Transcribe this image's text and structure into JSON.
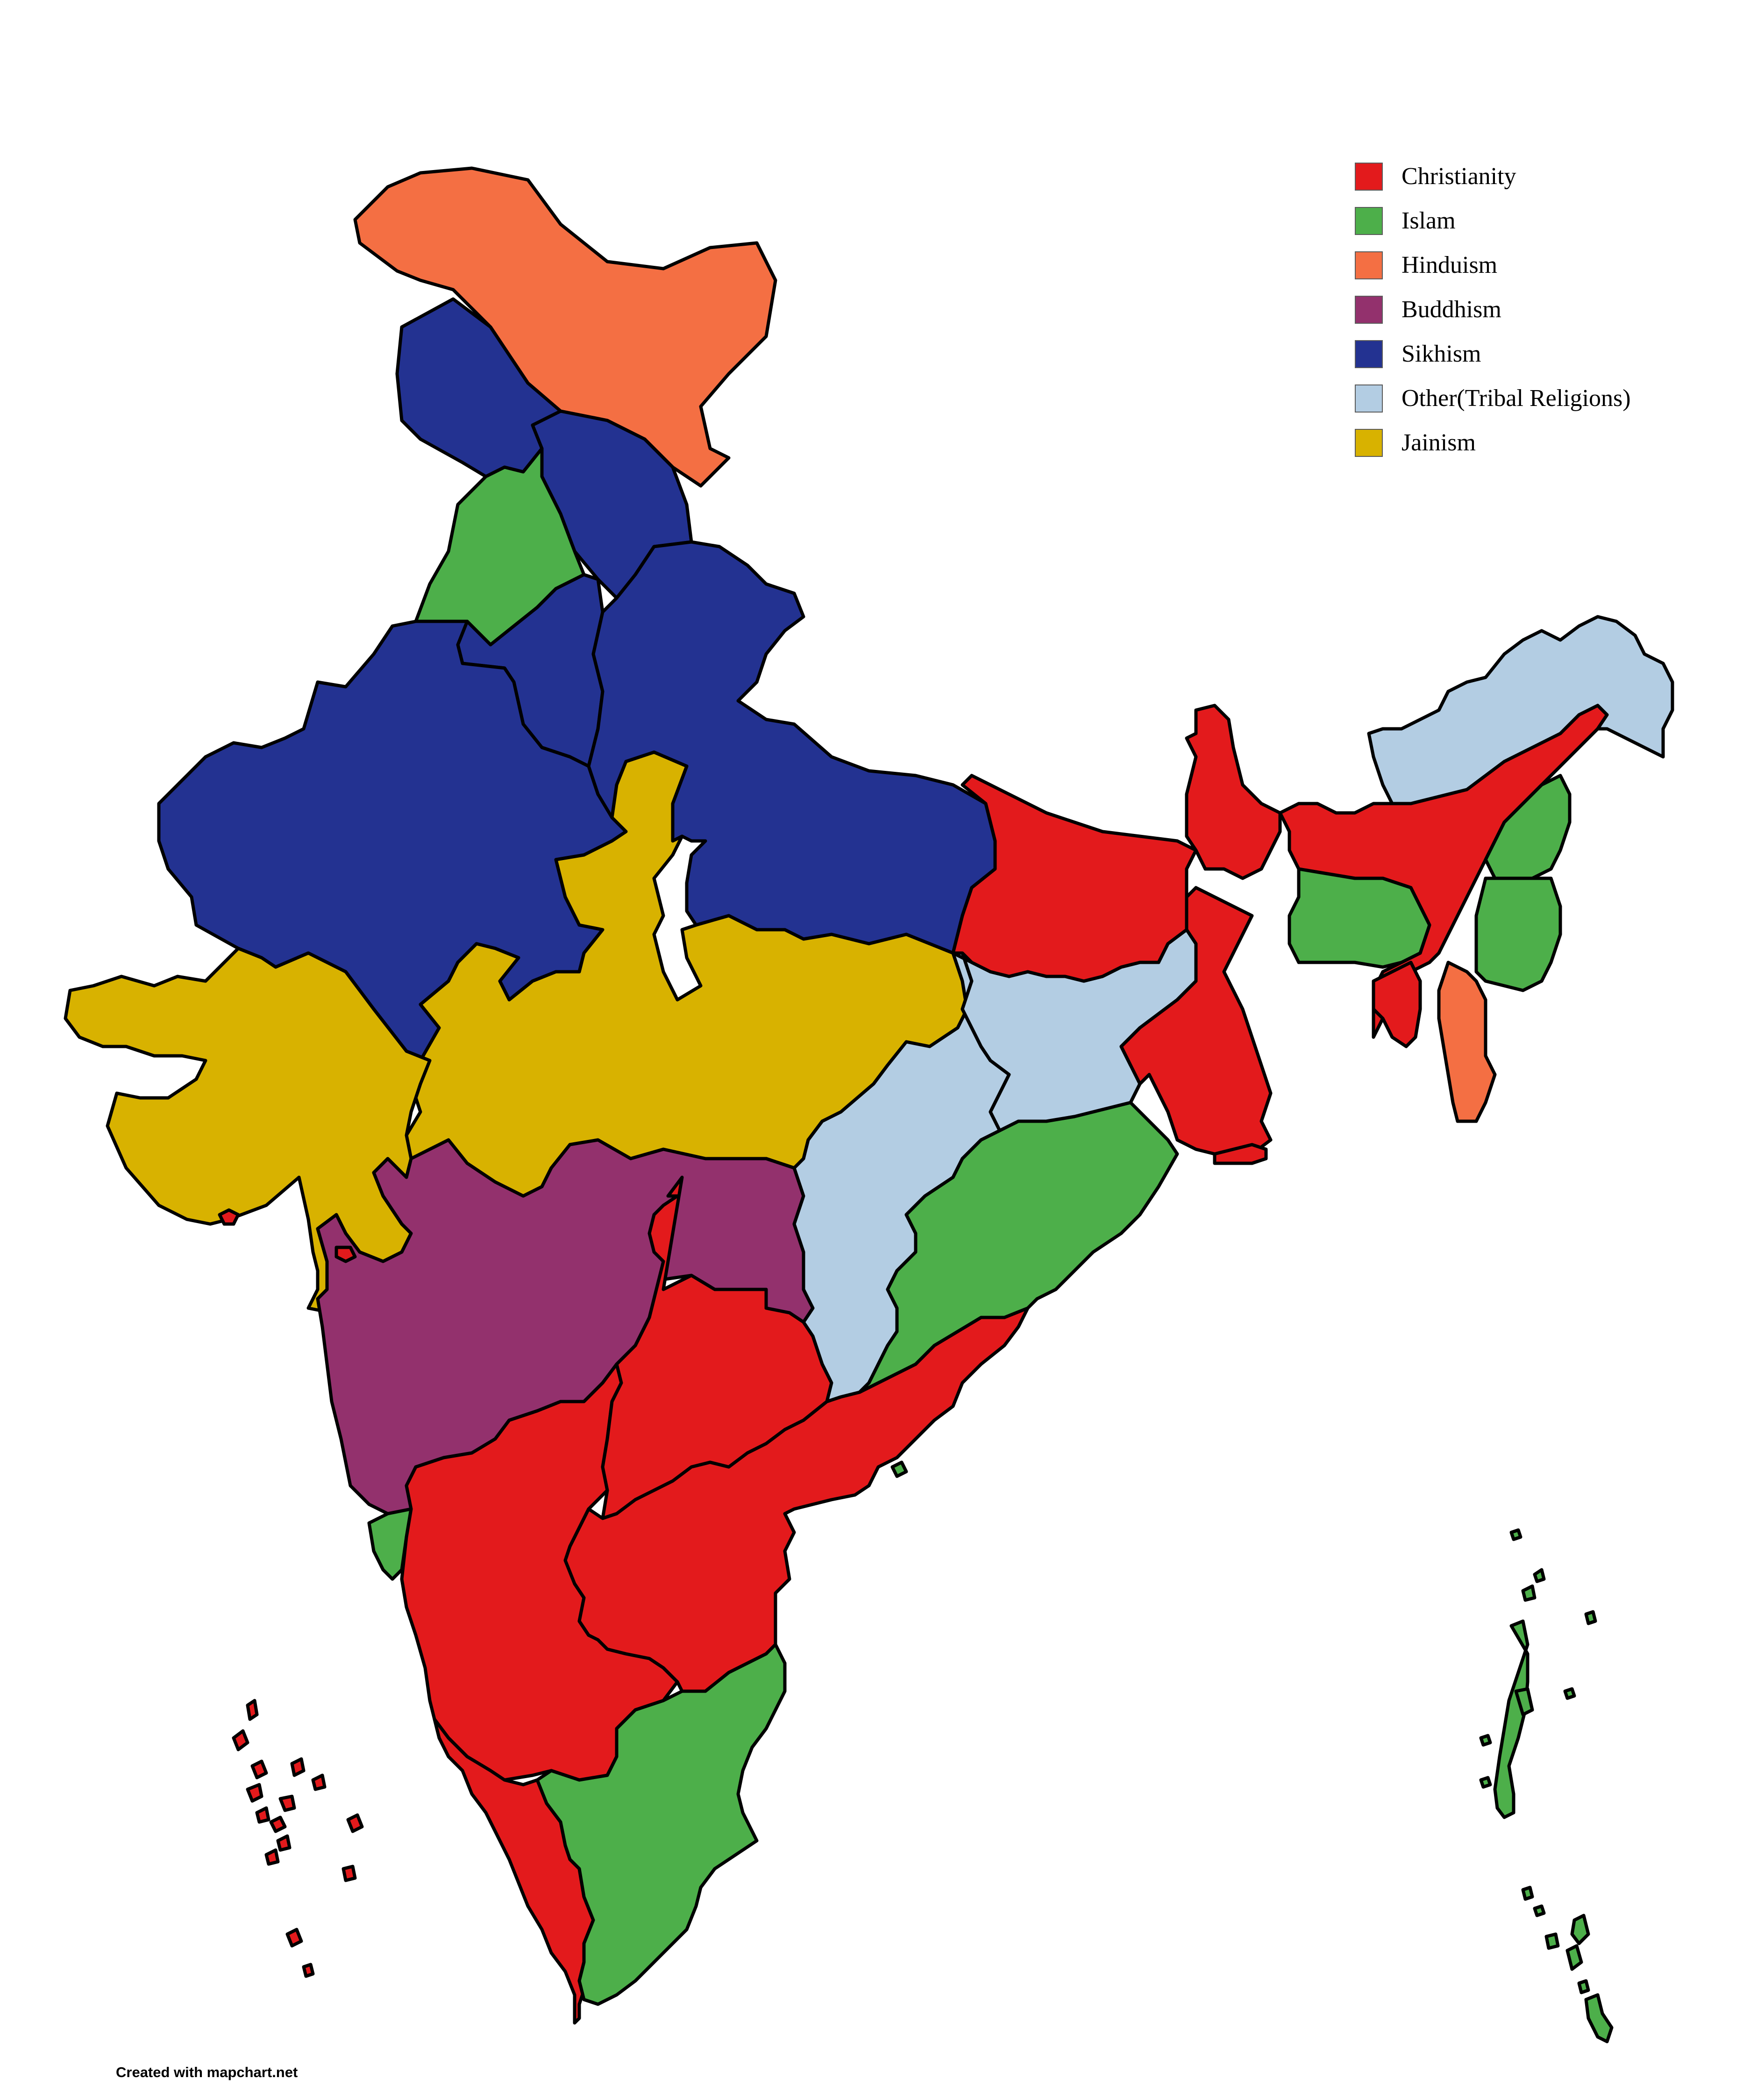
{
  "legend": {
    "items": [
      {
        "label": "Christianity",
        "color": "#e31a1c"
      },
      {
        "label": "Islam",
        "color": "#4daf4a"
      },
      {
        "label": "Hinduism",
        "color": "#f46f43"
      },
      {
        "label": "Buddhism",
        "color": "#93316d"
      },
      {
        "label": "Sikhism",
        "color": "#233291"
      },
      {
        "label": "Other(Tribal Religions)",
        "color": "#b3cde3"
      },
      {
        "label": "Jainism",
        "color": "#d8b200"
      }
    ]
  },
  "footer": {
    "credit": "Created with mapchart.net"
  },
  "colors": {
    "background": "#ffffff",
    "outline": "#000000"
  }
}
